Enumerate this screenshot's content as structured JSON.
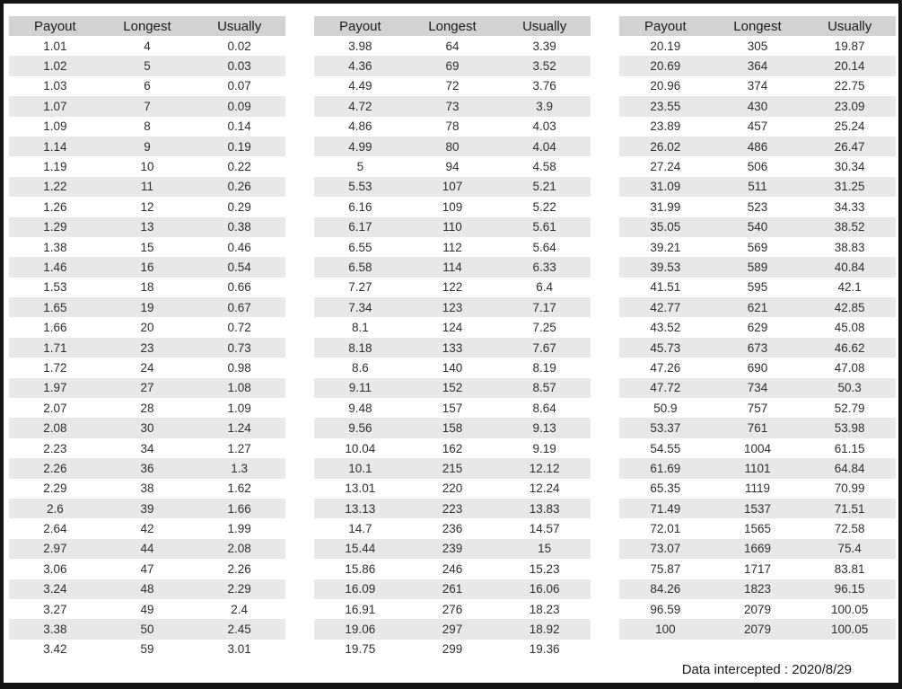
{
  "columns": [
    "Payout",
    "Longest",
    "Usually"
  ],
  "tables": [
    {
      "rows": [
        [
          "1.01",
          "4",
          "0.02"
        ],
        [
          "1.02",
          "5",
          "0.03"
        ],
        [
          "1.03",
          "6",
          "0.07"
        ],
        [
          "1.07",
          "7",
          "0.09"
        ],
        [
          "1.09",
          "8",
          "0.14"
        ],
        [
          "1.14",
          "9",
          "0.19"
        ],
        [
          "1.19",
          "10",
          "0.22"
        ],
        [
          "1.22",
          "11",
          "0.26"
        ],
        [
          "1.26",
          "12",
          "0.29"
        ],
        [
          "1.29",
          "13",
          "0.38"
        ],
        [
          "1.38",
          "15",
          "0.46"
        ],
        [
          "1.46",
          "16",
          "0.54"
        ],
        [
          "1.53",
          "18",
          "0.66"
        ],
        [
          "1.65",
          "19",
          "0.67"
        ],
        [
          "1.66",
          "20",
          "0.72"
        ],
        [
          "1.71",
          "23",
          "0.73"
        ],
        [
          "1.72",
          "24",
          "0.98"
        ],
        [
          "1.97",
          "27",
          "1.08"
        ],
        [
          "2.07",
          "28",
          "1.09"
        ],
        [
          "2.08",
          "30",
          "1.24"
        ],
        [
          "2.23",
          "34",
          "1.27"
        ],
        [
          "2.26",
          "36",
          "1.3"
        ],
        [
          "2.29",
          "38",
          "1.62"
        ],
        [
          "2.6",
          "39",
          "1.66"
        ],
        [
          "2.64",
          "42",
          "1.99"
        ],
        [
          "2.97",
          "44",
          "2.08"
        ],
        [
          "3.06",
          "47",
          "2.26"
        ],
        [
          "3.24",
          "48",
          "2.29"
        ],
        [
          "3.27",
          "49",
          "2.4"
        ],
        [
          "3.38",
          "50",
          "2.45"
        ],
        [
          "3.42",
          "59",
          "3.01"
        ]
      ]
    },
    {
      "rows": [
        [
          "3.98",
          "64",
          "3.39"
        ],
        [
          "4.36",
          "69",
          "3.52"
        ],
        [
          "4.49",
          "72",
          "3.76"
        ],
        [
          "4.72",
          "73",
          "3.9"
        ],
        [
          "4.86",
          "78",
          "4.03"
        ],
        [
          "4.99",
          "80",
          "4.04"
        ],
        [
          "5",
          "94",
          "4.58"
        ],
        [
          "5.53",
          "107",
          "5.21"
        ],
        [
          "6.16",
          "109",
          "5.22"
        ],
        [
          "6.17",
          "110",
          "5.61"
        ],
        [
          "6.55",
          "112",
          "5.64"
        ],
        [
          "6.58",
          "114",
          "6.33"
        ],
        [
          "7.27",
          "122",
          "6.4"
        ],
        [
          "7.34",
          "123",
          "7.17"
        ],
        [
          "8.1",
          "124",
          "7.25"
        ],
        [
          "8.18",
          "133",
          "7.67"
        ],
        [
          "8.6",
          "140",
          "8.19"
        ],
        [
          "9.11",
          "152",
          "8.57"
        ],
        [
          "9.48",
          "157",
          "8.64"
        ],
        [
          "9.56",
          "158",
          "9.13"
        ],
        [
          "10.04",
          "162",
          "9.19"
        ],
        [
          "10.1",
          "215",
          "12.12"
        ],
        [
          "13.01",
          "220",
          "12.24"
        ],
        [
          "13.13",
          "223",
          "13.83"
        ],
        [
          "14.7",
          "236",
          "14.57"
        ],
        [
          "15.44",
          "239",
          "15"
        ],
        [
          "15.86",
          "246",
          "15.23"
        ],
        [
          "16.09",
          "261",
          "16.06"
        ],
        [
          "16.91",
          "276",
          "18.23"
        ],
        [
          "19.06",
          "297",
          "18.92"
        ],
        [
          "19.75",
          "299",
          "19.36"
        ]
      ]
    },
    {
      "rows": [
        [
          "20.19",
          "305",
          "19.87"
        ],
        [
          "20.69",
          "364",
          "20.14"
        ],
        [
          "20.96",
          "374",
          "22.75"
        ],
        [
          "23.55",
          "430",
          "23.09"
        ],
        [
          "23.89",
          "457",
          "25.24"
        ],
        [
          "26.02",
          "486",
          "26.47"
        ],
        [
          "27.24",
          "506",
          "30.34"
        ],
        [
          "31.09",
          "511",
          "31.25"
        ],
        [
          "31.99",
          "523",
          "34.33"
        ],
        [
          "35.05",
          "540",
          "38.52"
        ],
        [
          "39.21",
          "569",
          "38.83"
        ],
        [
          "39.53",
          "589",
          "40.84"
        ],
        [
          "41.51",
          "595",
          "42.1"
        ],
        [
          "42.77",
          "621",
          "42.85"
        ],
        [
          "43.52",
          "629",
          "45.08"
        ],
        [
          "45.73",
          "673",
          "46.62"
        ],
        [
          "47.26",
          "690",
          "47.08"
        ],
        [
          "47.72",
          "734",
          "50.3"
        ],
        [
          "50.9",
          "757",
          "52.79"
        ],
        [
          "53.37",
          "761",
          "53.98"
        ],
        [
          "54.55",
          "1004",
          "61.15"
        ],
        [
          "61.69",
          "1101",
          "64.84"
        ],
        [
          "65.35",
          "1119",
          "70.99"
        ],
        [
          "71.49",
          "1537",
          "71.51"
        ],
        [
          "72.01",
          "1565",
          "72.58"
        ],
        [
          "73.07",
          "1669",
          "75.4"
        ],
        [
          "75.87",
          "1717",
          "83.81"
        ],
        [
          "84.26",
          "1823",
          "96.15"
        ],
        [
          "96.59",
          "2079",
          "100.05"
        ],
        [
          "100",
          "2079",
          "100.05"
        ]
      ]
    }
  ],
  "footer": {
    "text": "Data intercepted : 2020/8/29"
  },
  "colors": {
    "header_bg": "#d2d2d2",
    "stripe_bg": "#e8e8e8",
    "frame": "#141414",
    "text": "#2e2e2e"
  }
}
